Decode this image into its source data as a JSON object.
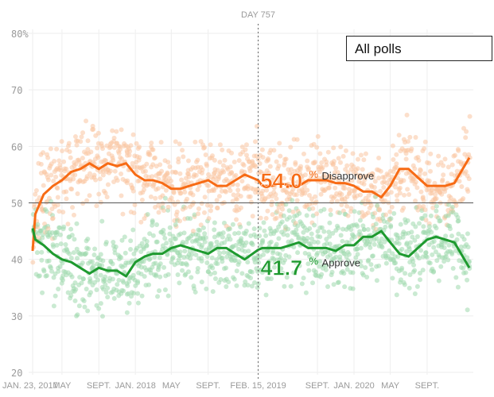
{
  "hover": {
    "day_label": "DAY 757",
    "date": "2019-02-15"
  },
  "filter": {
    "selected": "All polls"
  },
  "colors": {
    "approve": "#1e9a2f",
    "disapprove": "#f76b15",
    "approve_dot": "#9fd8ad",
    "disapprove_dot": "#f9c4a0"
  },
  "chart_data": {
    "type": "line",
    "title": "",
    "xlabel": "",
    "ylabel": "",
    "xlim": [
      "2017-01-23",
      "2021-01-20"
    ],
    "ylim": [
      20,
      80
    ],
    "yticks": [
      20,
      30,
      40,
      50,
      60,
      70,
      80
    ],
    "ytick_labels": [
      "20",
      "30",
      "40",
      "50",
      "60",
      "70",
      "80%"
    ],
    "reference_line": 50,
    "grid": true,
    "xticks": [
      {
        "date": "2017-01-23",
        "label": "JAN. 23, 2017"
      },
      {
        "date": "2017-05-01",
        "label": "MAY"
      },
      {
        "date": "2017-09-01",
        "label": "SEPT."
      },
      {
        "date": "2018-01-01",
        "label": "JAN. 2018"
      },
      {
        "date": "2018-05-01",
        "label": "MAY"
      },
      {
        "date": "2018-09-01",
        "label": "SEPT."
      },
      {
        "date": "2019-02-15",
        "label": "FEB. 15, 2019"
      },
      {
        "date": "2019-09-01",
        "label": "SEPT."
      },
      {
        "date": "2020-01-01",
        "label": "JAN. 2020"
      },
      {
        "date": "2020-05-01",
        "label": "MAY"
      },
      {
        "date": "2020-09-01",
        "label": "SEPT."
      }
    ],
    "x": [
      "2017-01-23",
      "2017-02-01",
      "2017-03-01",
      "2017-04-01",
      "2017-05-01",
      "2017-06-01",
      "2017-07-01",
      "2017-08-01",
      "2017-09-01",
      "2017-10-01",
      "2017-11-01",
      "2017-12-01",
      "2018-01-01",
      "2018-02-01",
      "2018-03-01",
      "2018-04-01",
      "2018-05-01",
      "2018-06-01",
      "2018-07-01",
      "2018-08-01",
      "2018-09-01",
      "2018-10-01",
      "2018-11-01",
      "2018-12-01",
      "2019-01-01",
      "2019-02-15",
      "2019-03-01",
      "2019-04-01",
      "2019-05-01",
      "2019-06-01",
      "2019-07-01",
      "2019-08-01",
      "2019-09-01",
      "2019-10-01",
      "2019-11-01",
      "2019-12-01",
      "2020-01-01",
      "2020-02-01",
      "2020-03-01",
      "2020-04-01",
      "2020-05-01",
      "2020-06-01",
      "2020-07-01",
      "2020-08-01",
      "2020-09-01",
      "2020-10-01",
      "2020-11-01",
      "2020-12-01",
      "2021-01-20"
    ],
    "series": [
      {
        "name": "Disapprove",
        "current_label": "54.0",
        "values": [
          41.5,
          48,
          51.5,
          53,
          54,
          55.5,
          56,
          57,
          56,
          57,
          56.5,
          57,
          55,
          54,
          54,
          53.5,
          52.5,
          52.5,
          53,
          53.5,
          54,
          53,
          53,
          54,
          55,
          54.0,
          53,
          53,
          53.5,
          53,
          53,
          54,
          54,
          54,
          53.5,
          53.5,
          53,
          52,
          52,
          51,
          53,
          56,
          56,
          54.5,
          53,
          53,
          53,
          53.5,
          58
        ]
      },
      {
        "name": "Approve",
        "current_label": "41.7",
        "values": [
          45.5,
          43.5,
          42.5,
          41,
          40,
          39.5,
          38.5,
          37.5,
          38.5,
          38,
          38,
          37,
          39.5,
          40.5,
          41,
          41,
          42,
          42.5,
          42,
          41.5,
          41,
          42,
          42,
          41,
          40,
          41.7,
          42,
          42,
          42,
          42.5,
          43,
          42,
          42,
          42,
          41.5,
          42.5,
          42.5,
          44,
          44,
          45,
          43,
          41,
          40.5,
          42,
          43.5,
          44,
          43.5,
          43,
          38.5
        ]
      }
    ]
  }
}
